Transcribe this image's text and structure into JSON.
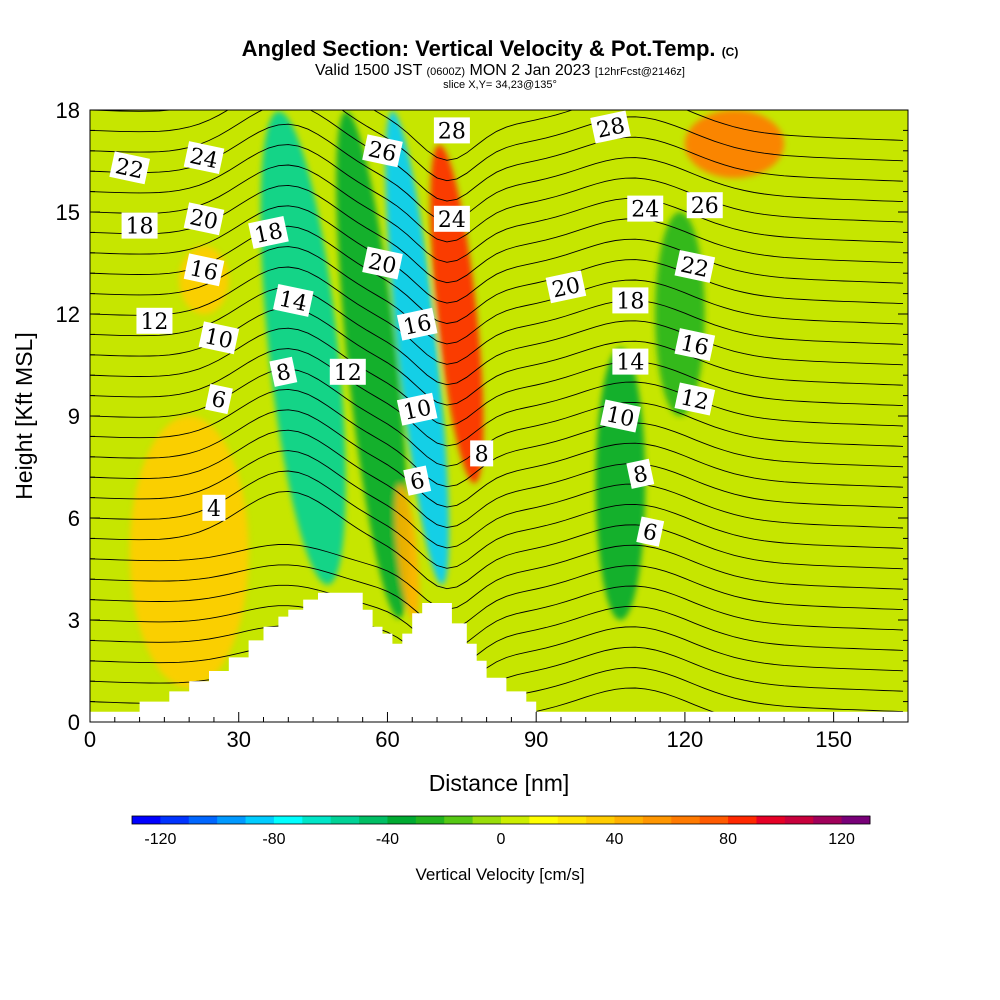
{
  "chart_data": {
    "type": "heatmap",
    "title": {
      "main": "Angled Section: Vertical Velocity & Pot.Temp.",
      "copyright": "(C)",
      "valid_prefix": "Valid 1500 JST",
      "zulu": "(0600Z)",
      "valid_date": "MON 2 Jan 2023",
      "forecast": "[12hrFcst@2146z]",
      "slice": "slice X,Y= 34,23@135°"
    },
    "xlabel": "Distance [nm]",
    "ylabel": "Height [Kft MSL]",
    "xlim": [
      0,
      165
    ],
    "ylim": [
      0,
      18
    ],
    "x_ticks": [
      0,
      30,
      60,
      90,
      120,
      150
    ],
    "y_ticks": [
      0,
      3,
      6,
      9,
      12,
      15,
      18
    ],
    "grid": false,
    "colorbar": {
      "title": "Vertical Velocity [cm/s]",
      "min": -130,
      "max": 130,
      "step": 10,
      "tick_values": [
        -120,
        -80,
        -40,
        0,
        40,
        80,
        120
      ],
      "tick_labels": [
        "-120",
        "-80",
        "-40",
        "0",
        "40",
        "80",
        "120"
      ],
      "colors": [
        "#0000ff",
        "#0033ff",
        "#0066ff",
        "#0099ff",
        "#00ccff",
        "#00ffff",
        "#00e6c8",
        "#00d296",
        "#00be64",
        "#00aa32",
        "#22b41e",
        "#55c814",
        "#99dd0a",
        "#ccee00",
        "#ffff00",
        "#ffe600",
        "#ffcc00",
        "#ffb000",
        "#ff9600",
        "#ff7a00",
        "#ff5a00",
        "#ff2800",
        "#e60026",
        "#c8003c",
        "#a0005a",
        "#780078"
      ]
    },
    "vertical_velocity_features": [
      {
        "name": "updraft",
        "x_range": [
          8,
          32
        ],
        "z_range": [
          1,
          9
        ],
        "value": 35
      },
      {
        "name": "updraft",
        "x_range": [
          18,
          28
        ],
        "z_range": [
          12,
          14
        ],
        "value": 30
      },
      {
        "name": "downdraft",
        "x_range": [
          36,
          50
        ],
        "z_range": [
          4,
          18
        ],
        "value": -55
      },
      {
        "name": "downdraft",
        "x_range": [
          52,
          62
        ],
        "z_range": [
          3,
          18
        ],
        "value": -35
      },
      {
        "name": "downdraft",
        "x_range": [
          62,
          70
        ],
        "z_range": [
          4,
          18
        ],
        "value": -90
      },
      {
        "name": "updraft",
        "x_range": [
          62,
          66
        ],
        "z_range": [
          3,
          7
        ],
        "value": 45
      },
      {
        "name": "updraft",
        "x_range": [
          70,
          78
        ],
        "z_range": [
          7,
          17
        ],
        "value": 80
      },
      {
        "name": "downdraft",
        "x_range": [
          102,
          112
        ],
        "z_range": [
          3,
          11
        ],
        "value": -35
      },
      {
        "name": "downdraft",
        "x_range": [
          114,
          124
        ],
        "z_range": [
          9,
          15
        ],
        "value": -30
      },
      {
        "name": "updraft",
        "x_range": [
          120,
          140
        ],
        "z_range": [
          16,
          18
        ],
        "value": 60
      }
    ],
    "terrain": {
      "x": [
        0,
        10,
        16,
        20,
        24,
        28,
        32,
        35,
        38,
        40,
        43,
        46,
        52,
        55,
        57,
        59,
        61,
        63,
        65,
        67,
        71,
        73,
        76,
        78,
        80,
        84,
        88,
        90,
        165
      ],
      "height": [
        0.3,
        0.6,
        0.9,
        1.2,
        1.5,
        1.9,
        2.4,
        2.8,
        3.1,
        3.3,
        3.6,
        3.8,
        3.8,
        3.3,
        2.8,
        2.6,
        2.3,
        2.6,
        3.2,
        3.5,
        3.5,
        2.9,
        2.3,
        1.8,
        1.3,
        0.9,
        0.6,
        0.3,
        0.3
      ]
    },
    "potential_temperature_labels": [
      {
        "value": "22",
        "x": 8,
        "z": 16.3
      },
      {
        "value": "24",
        "x": 23,
        "z": 16.6
      },
      {
        "value": "18",
        "x": 10,
        "z": 14.6
      },
      {
        "value": "20",
        "x": 23,
        "z": 14.8
      },
      {
        "value": "18",
        "x": 36,
        "z": 14.4
      },
      {
        "value": "16",
        "x": 23,
        "z": 13.3
      },
      {
        "value": "12",
        "x": 13,
        "z": 11.8
      },
      {
        "value": "10",
        "x": 26,
        "z": 11.3
      },
      {
        "value": "14",
        "x": 41,
        "z": 12.4
      },
      {
        "value": "8",
        "x": 39,
        "z": 10.3
      },
      {
        "value": "12",
        "x": 52,
        "z": 10.3
      },
      {
        "value": "6",
        "x": 26,
        "z": 9.5
      },
      {
        "value": "4",
        "x": 25,
        "z": 6.3
      },
      {
        "value": "26",
        "x": 59,
        "z": 16.8
      },
      {
        "value": "28",
        "x": 73,
        "z": 17.4
      },
      {
        "value": "24",
        "x": 73,
        "z": 14.8
      },
      {
        "value": "20",
        "x": 59,
        "z": 13.5
      },
      {
        "value": "16",
        "x": 66,
        "z": 11.7
      },
      {
        "value": "10",
        "x": 66,
        "z": 9.2
      },
      {
        "value": "6",
        "x": 66,
        "z": 7.1
      },
      {
        "value": "8",
        "x": 79,
        "z": 7.9
      },
      {
        "value": "28",
        "x": 105,
        "z": 17.5
      },
      {
        "value": "24",
        "x": 112,
        "z": 15.1
      },
      {
        "value": "26",
        "x": 124,
        "z": 15.2
      },
      {
        "value": "20",
        "x": 96,
        "z": 12.8
      },
      {
        "value": "22",
        "x": 122,
        "z": 13.4
      },
      {
        "value": "18",
        "x": 109,
        "z": 12.4
      },
      {
        "value": "16",
        "x": 122,
        "z": 11.1
      },
      {
        "value": "14",
        "x": 109,
        "z": 10.6
      },
      {
        "value": "12",
        "x": 122,
        "z": 9.5
      },
      {
        "value": "10",
        "x": 107,
        "z": 9.0
      },
      {
        "value": "8",
        "x": 111,
        "z": 7.3
      },
      {
        "value": "6",
        "x": 113,
        "z": 5.6
      }
    ],
    "potential_temperature_range": [
      0,
      30
    ]
  }
}
